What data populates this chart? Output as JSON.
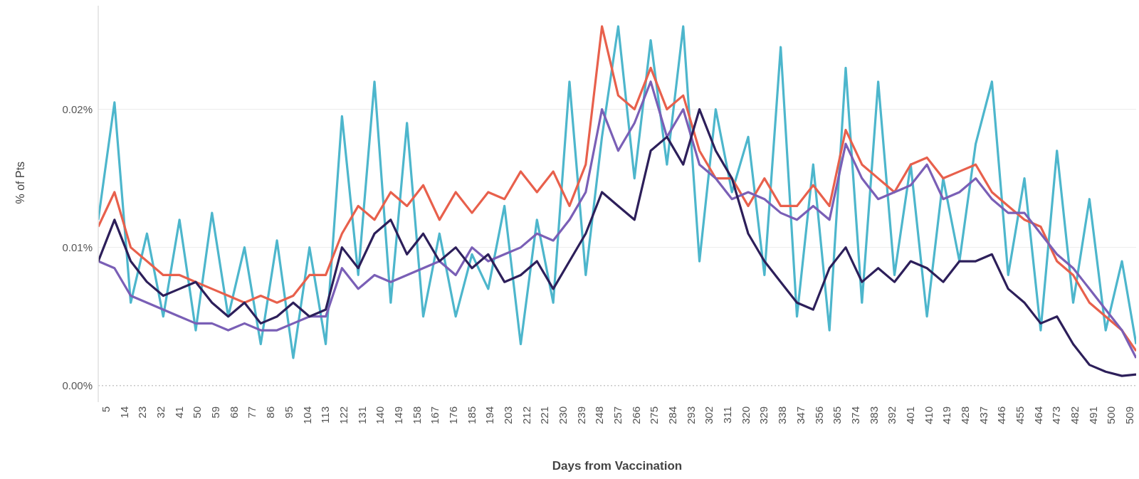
{
  "chart_data": {
    "type": "line",
    "xlabel": "Days from Vaccination",
    "ylabel": "% of Pts",
    "x": [
      1,
      9,
      17,
      25,
      33,
      41,
      49,
      57,
      65,
      73,
      81,
      89,
      97,
      105,
      113,
      121,
      129,
      137,
      145,
      153,
      161,
      169,
      177,
      185,
      193,
      201,
      209,
      217,
      225,
      233,
      241,
      249,
      257,
      265,
      273,
      281,
      289,
      297,
      305,
      313,
      321,
      329,
      337,
      345,
      353,
      361,
      369,
      377,
      385,
      393,
      401,
      409,
      417,
      425,
      433,
      441,
      449,
      457,
      465,
      473,
      481,
      489,
      497,
      505,
      512
    ],
    "series": [
      {
        "color": "#4db6cc",
        "values": [
          0.012,
          0.0205,
          0.006,
          0.011,
          0.005,
          0.012,
          0.004,
          0.0125,
          0.005,
          0.01,
          0.003,
          0.0105,
          0.002,
          0.01,
          0.003,
          0.0195,
          0.008,
          0.022,
          0.006,
          0.019,
          0.005,
          0.011,
          0.005,
          0.0095,
          0.007,
          0.013,
          0.003,
          0.012,
          0.006,
          0.022,
          0.008,
          0.018,
          0.026,
          0.015,
          0.025,
          0.016,
          0.026,
          0.009,
          0.02,
          0.014,
          0.018,
          0.008,
          0.0245,
          0.005,
          0.016,
          0.004,
          0.023,
          0.006,
          0.022,
          0.008,
          0.016,
          0.005,
          0.015,
          0.009,
          0.0175,
          0.022,
          0.008,
          0.015,
          0.004,
          0.017,
          0.006,
          0.0135,
          0.004,
          0.009,
          0.003
        ]
      },
      {
        "color": "#e8604c",
        "values": [
          0.0115,
          0.014,
          0.01,
          0.009,
          0.008,
          0.008,
          0.0075,
          0.007,
          0.0065,
          0.006,
          0.0065,
          0.006,
          0.0065,
          0.008,
          0.008,
          0.011,
          0.013,
          0.012,
          0.014,
          0.013,
          0.0145,
          0.012,
          0.014,
          0.0125,
          0.014,
          0.0135,
          0.0155,
          0.014,
          0.0155,
          0.013,
          0.016,
          0.026,
          0.021,
          0.02,
          0.023,
          0.02,
          0.021,
          0.017,
          0.015,
          0.015,
          0.013,
          0.015,
          0.013,
          0.013,
          0.0145,
          0.013,
          0.0185,
          0.016,
          0.015,
          0.014,
          0.016,
          0.0165,
          0.015,
          0.0155,
          0.016,
          0.014,
          0.013,
          0.012,
          0.0115,
          0.009,
          0.008,
          0.006,
          0.005,
          0.004,
          0.0025
        ]
      },
      {
        "color": "#7a5fb6",
        "values": [
          0.009,
          0.0085,
          0.0065,
          0.006,
          0.0055,
          0.005,
          0.0045,
          0.0045,
          0.004,
          0.0045,
          0.004,
          0.004,
          0.0045,
          0.005,
          0.005,
          0.0085,
          0.007,
          0.008,
          0.0075,
          0.008,
          0.0085,
          0.009,
          0.008,
          0.01,
          0.009,
          0.0095,
          0.01,
          0.011,
          0.0105,
          0.012,
          0.014,
          0.02,
          0.017,
          0.019,
          0.022,
          0.018,
          0.02,
          0.016,
          0.015,
          0.0135,
          0.014,
          0.0135,
          0.0125,
          0.012,
          0.013,
          0.012,
          0.0175,
          0.015,
          0.0135,
          0.014,
          0.0145,
          0.016,
          0.0135,
          0.014,
          0.015,
          0.0135,
          0.0125,
          0.0125,
          0.011,
          0.0095,
          0.0085,
          0.007,
          0.0055,
          0.004,
          0.002
        ]
      },
      {
        "color": "#2d1f5a",
        "values": [
          0.009,
          0.012,
          0.009,
          0.0075,
          0.0065,
          0.007,
          0.0075,
          0.006,
          0.005,
          0.006,
          0.0045,
          0.005,
          0.006,
          0.005,
          0.0055,
          0.01,
          0.0085,
          0.011,
          0.012,
          0.0095,
          0.011,
          0.009,
          0.01,
          0.0085,
          0.0095,
          0.0075,
          0.008,
          0.009,
          0.007,
          0.009,
          0.011,
          0.014,
          0.013,
          0.012,
          0.017,
          0.018,
          0.016,
          0.02,
          0.017,
          0.015,
          0.011,
          0.009,
          0.0075,
          0.006,
          0.0055,
          0.0085,
          0.01,
          0.0075,
          0.0085,
          0.0075,
          0.009,
          0.0085,
          0.0075,
          0.009,
          0.009,
          0.0095,
          0.007,
          0.006,
          0.0045,
          0.005,
          0.003,
          0.0015,
          0.001,
          0.0007,
          0.0008
        ]
      }
    ],
    "xlim": [
      1,
      512
    ],
    "xticks": [
      5,
      14,
      23,
      32,
      41,
      50,
      59,
      68,
      77,
      86,
      95,
      104,
      113,
      122,
      131,
      140,
      149,
      158,
      167,
      176,
      185,
      194,
      203,
      212,
      221,
      230,
      239,
      248,
      257,
      266,
      275,
      284,
      293,
      302,
      311,
      320,
      329,
      338,
      347,
      356,
      365,
      374,
      383,
      392,
      401,
      410,
      419,
      428,
      437,
      446,
      455,
      464,
      473,
      482,
      491,
      500,
      509
    ],
    "ylim": [
      -0.0012,
      0.0275
    ],
    "yticks": [
      {
        "value": 0,
        "label": "0.00%"
      },
      {
        "value": 0.01,
        "label": "0.01%"
      },
      {
        "value": 0.02,
        "label": "0.02%"
      }
    ],
    "grid": "y",
    "ref_lines": [
      {
        "axis": "y",
        "value": 0,
        "line_style": "dotted",
        "color": "#c8c8c8"
      }
    ],
    "marker": "none",
    "line_style": "solid"
  }
}
